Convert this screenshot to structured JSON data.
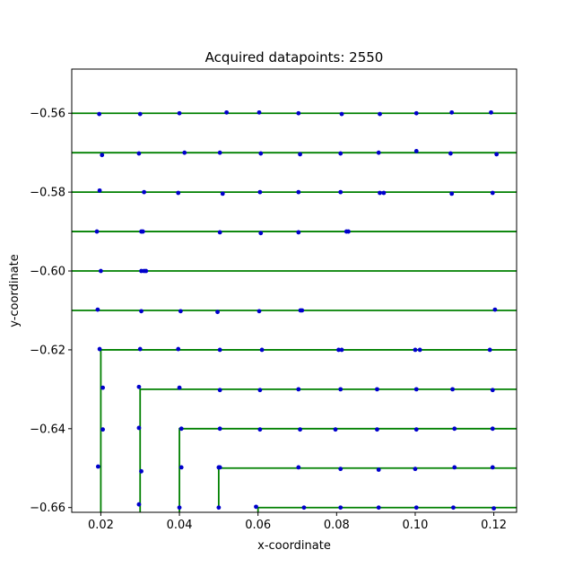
{
  "chart_data": {
    "type": "line",
    "title": "Acquired datapoints: 2550",
    "xlabel": "x-coordinate",
    "ylabel": "y-coordinate",
    "xlim": [
      0.0126,
      0.1258
    ],
    "ylim": [
      -0.6612,
      -0.5488
    ],
    "xticks": [
      0.02,
      0.04,
      0.06,
      0.08,
      0.1,
      0.12
    ],
    "xtick_labels": [
      "0.02",
      "0.04",
      "0.06",
      "0.08",
      "0.10",
      "0.12"
    ],
    "yticks": [
      -0.56,
      -0.58,
      -0.6,
      -0.62,
      -0.64,
      -0.66
    ],
    "ytick_labels": [
      "−0.56",
      "−0.58",
      "−0.60",
      "−0.62",
      "−0.64",
      "−0.66"
    ],
    "grid": false,
    "colors": {
      "path": "#008000",
      "points": "#0000cc"
    },
    "series": [
      {
        "style": "line",
        "segments": [
          {
            "x": [
              0.0126,
              0.1258
            ],
            "y": [
              -0.56,
              -0.56
            ]
          },
          {
            "x": [
              0.0126,
              0.1258
            ],
            "y": [
              -0.57,
              -0.57
            ]
          },
          {
            "x": [
              0.0126,
              0.1258
            ],
            "y": [
              -0.58,
              -0.58
            ]
          },
          {
            "x": [
              0.0126,
              0.1258
            ],
            "y": [
              -0.59,
              -0.59
            ]
          },
          {
            "x": [
              0.0126,
              0.1258
            ],
            "y": [
              -0.6,
              -0.6
            ]
          },
          {
            "x": [
              0.0126,
              0.1258
            ],
            "y": [
              -0.61,
              -0.61
            ]
          },
          {
            "x": [
              0.02,
              0.02,
              0.1258
            ],
            "y": [
              -0.6612,
              -0.62,
              -0.62
            ]
          },
          {
            "x": [
              0.03,
              0.03,
              0.1258
            ],
            "y": [
              -0.6612,
              -0.63,
              -0.63
            ]
          },
          {
            "x": [
              0.04,
              0.04,
              0.1258
            ],
            "y": [
              -0.6612,
              -0.64,
              -0.64
            ]
          },
          {
            "x": [
              0.05,
              0.05,
              0.1258
            ],
            "y": [
              -0.66,
              -0.65,
              -0.65
            ]
          },
          {
            "x": [
              0.06,
              0.06,
              0.1258
            ],
            "y": [
              -0.6612,
              -0.66,
              -0.66
            ]
          }
        ]
      },
      {
        "style": "scatter",
        "points": [
          [
            0.0196,
            -0.5602
          ],
          [
            0.03,
            -0.5602
          ],
          [
            0.04,
            -0.56
          ],
          [
            0.052,
            -0.5598
          ],
          [
            0.0603,
            -0.5598
          ],
          [
            0.0703,
            -0.56
          ],
          [
            0.0813,
            -0.5602
          ],
          [
            0.091,
            -0.5602
          ],
          [
            0.1003,
            -0.56
          ],
          [
            0.1093,
            -0.5598
          ],
          [
            0.1193,
            -0.5598
          ],
          [
            0.0203,
            -0.5706
          ],
          [
            0.0297,
            -0.5702
          ],
          [
            0.0413,
            -0.57
          ],
          [
            0.0503,
            -0.57
          ],
          [
            0.0607,
            -0.5702
          ],
          [
            0.0707,
            -0.5704
          ],
          [
            0.081,
            -0.5702
          ],
          [
            0.0907,
            -0.57
          ],
          [
            0.1003,
            -0.5696
          ],
          [
            0.109,
            -0.5702
          ],
          [
            0.1207,
            -0.5704
          ],
          [
            0.0197,
            -0.5796
          ],
          [
            0.031,
            -0.58
          ],
          [
            0.0397,
            -0.5802
          ],
          [
            0.051,
            -0.5804
          ],
          [
            0.0605,
            -0.58
          ],
          [
            0.0703,
            -0.58
          ],
          [
            0.081,
            -0.58
          ],
          [
            0.091,
            -0.5802
          ],
          [
            0.092,
            -0.5802
          ],
          [
            0.1093,
            -0.5804
          ],
          [
            0.1197,
            -0.5802
          ],
          [
            0.019,
            -0.59
          ],
          [
            0.0303,
            -0.59
          ],
          [
            0.0307,
            -0.59
          ],
          [
            0.0503,
            -0.5902
          ],
          [
            0.0607,
            -0.5904
          ],
          [
            0.0703,
            -0.5902
          ],
          [
            0.0825,
            -0.59
          ],
          [
            0.083,
            -0.59
          ],
          [
            0.02,
            -0.6
          ],
          [
            0.0303,
            -0.6
          ],
          [
            0.031,
            -0.6
          ],
          [
            0.0315,
            -0.6
          ],
          [
            0.0192,
            -0.6098
          ],
          [
            0.0303,
            -0.6102
          ],
          [
            0.0403,
            -0.6102
          ],
          [
            0.0497,
            -0.6104
          ],
          [
            0.0603,
            -0.6102
          ],
          [
            0.0712,
            -0.61
          ],
          [
            0.0708,
            -0.61
          ],
          [
            0.1203,
            -0.6098
          ],
          [
            0.0197,
            -0.6198
          ],
          [
            0.03,
            -0.6198
          ],
          [
            0.0397,
            -0.6198
          ],
          [
            0.0503,
            -0.62
          ],
          [
            0.061,
            -0.62
          ],
          [
            0.0805,
            -0.62
          ],
          [
            0.0813,
            -0.62
          ],
          [
            0.1,
            -0.62
          ],
          [
            0.1012,
            -0.62
          ],
          [
            0.119,
            -0.62
          ],
          [
            0.0205,
            -0.6296
          ],
          [
            0.0297,
            -0.6294
          ],
          [
            0.04,
            -0.6296
          ],
          [
            0.0503,
            -0.6302
          ],
          [
            0.0605,
            -0.6302
          ],
          [
            0.0703,
            -0.63
          ],
          [
            0.081,
            -0.63
          ],
          [
            0.0903,
            -0.63
          ],
          [
            0.1003,
            -0.63
          ],
          [
            0.1095,
            -0.63
          ],
          [
            0.1197,
            -0.6302
          ],
          [
            0.0205,
            -0.6402
          ],
          [
            0.0297,
            -0.6398
          ],
          [
            0.0405,
            -0.64
          ],
          [
            0.0503,
            -0.64
          ],
          [
            0.0605,
            -0.6402
          ],
          [
            0.0707,
            -0.6402
          ],
          [
            0.0797,
            -0.6402
          ],
          [
            0.0903,
            -0.6402
          ],
          [
            0.1003,
            -0.6402
          ],
          [
            0.11,
            -0.64
          ],
          [
            0.1197,
            -0.64
          ],
          [
            0.0193,
            -0.6496
          ],
          [
            0.0303,
            -0.6508
          ],
          [
            0.0405,
            -0.6498
          ],
          [
            0.05,
            -0.6498
          ],
          [
            0.0503,
            -0.6498
          ],
          [
            0.0703,
            -0.6498
          ],
          [
            0.081,
            -0.6502
          ],
          [
            0.0907,
            -0.6504
          ],
          [
            0.1,
            -0.6502
          ],
          [
            0.11,
            -0.6498
          ],
          [
            0.1197,
            -0.6498
          ],
          [
            0.0297,
            -0.6592
          ],
          [
            0.04,
            -0.66
          ],
          [
            0.05,
            -0.66
          ],
          [
            0.0595,
            -0.6598
          ],
          [
            0.0717,
            -0.66
          ],
          [
            0.081,
            -0.66
          ],
          [
            0.0907,
            -0.66
          ],
          [
            0.1003,
            -0.66
          ],
          [
            0.1097,
            -0.66
          ],
          [
            0.12,
            -0.6602
          ]
        ]
      }
    ]
  }
}
